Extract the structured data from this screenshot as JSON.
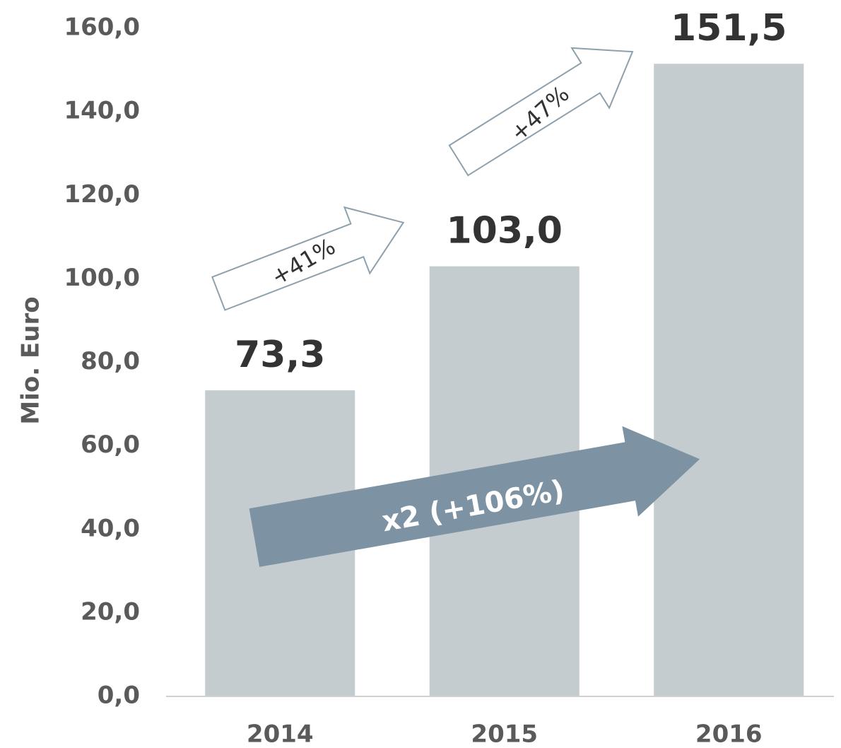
{
  "chart_data": {
    "type": "bar",
    "y_label": "Mio. Euro",
    "categories": [
      "2014",
      "2015",
      "2016"
    ],
    "values": [
      73.3,
      103.0,
      151.5
    ],
    "value_labels": [
      "73,3",
      "103,0",
      "151,5"
    ],
    "color": "#c4ccd0",
    "ylim": [
      0,
      160
    ],
    "yticks": [
      {
        "value": 0,
        "label": "0,0"
      },
      {
        "value": 20,
        "label": "20,0"
      },
      {
        "value": 40,
        "label": "40,0"
      },
      {
        "value": 60,
        "label": "60,0"
      },
      {
        "value": 80,
        "label": "80,0"
      },
      {
        "value": 100,
        "label": "100,0"
      },
      {
        "value": 120,
        "label": "120,0"
      },
      {
        "value": 140,
        "label": "140,0"
      },
      {
        "value": 160,
        "label": "160,0"
      }
    ],
    "grid": false,
    "annotations": [
      "+41%",
      "+47%",
      "x2 (+106%)"
    ]
  }
}
